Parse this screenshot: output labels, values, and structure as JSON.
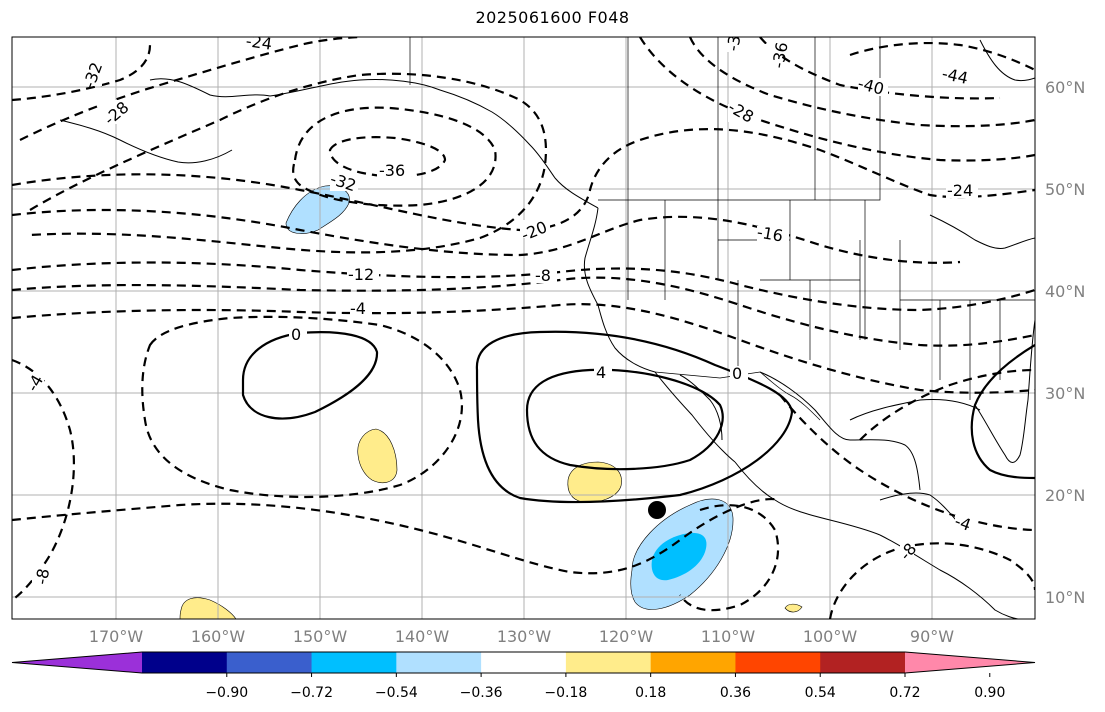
{
  "title": "2025061600 F048",
  "map": {
    "lat_labels": [
      "60°N",
      "50°N",
      "40°N",
      "30°N",
      "20°N",
      "10°N"
    ],
    "lon_labels": [
      "170°W",
      "160°W",
      "150°W",
      "140°W",
      "130°W",
      "120°W",
      "110°W",
      "100°W",
      "90°W"
    ],
    "contour_labels": [
      "-24",
      "-32",
      "-28",
      "-36",
      "-32",
      "-20",
      "-12",
      "-8",
      "-4",
      "0",
      "4",
      "0",
      "-4",
      "-8",
      "-3",
      "-36",
      "-28",
      "-40",
      "-44",
      "-24",
      "-16",
      "-4",
      "-8"
    ],
    "marker": "storm-center-dot"
  },
  "colorbar": {
    "colors": [
      "#9b30d9",
      "#00008b",
      "#3a5fcd",
      "#00bfff",
      "#b0e0ff",
      "#ffffff",
      "#ffec8b",
      "#ffa500",
      "#ff4500",
      "#b22222",
      "#ff88aa"
    ],
    "tick_labels": [
      "−0.90",
      "−0.72",
      "−0.54",
      "−0.36",
      "−0.18",
      "0.18",
      "0.36",
      "0.54",
      "0.72",
      "0.90"
    ]
  }
}
